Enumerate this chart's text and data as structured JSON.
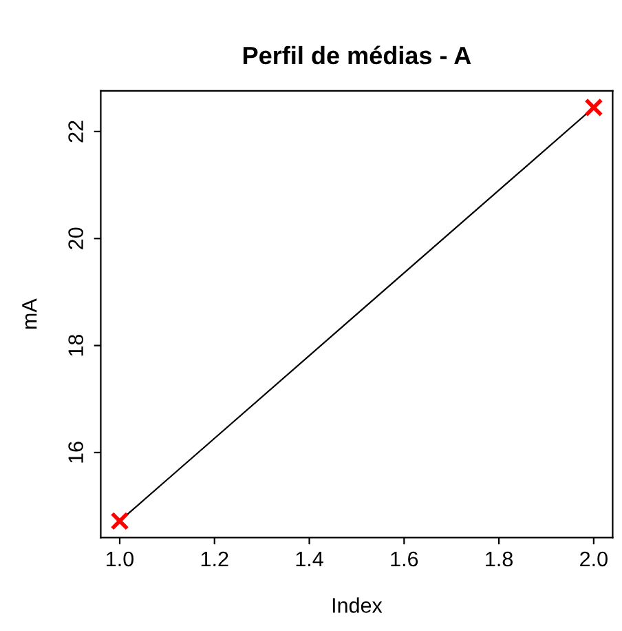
{
  "chart_data": {
    "type": "line",
    "title": "Perfil de médias - A",
    "xlabel": "Index",
    "ylabel": "mA",
    "x": [
      1,
      2
    ],
    "series": [
      {
        "color": "#000000",
        "values": [
          14.72,
          22.45
        ]
      },
      {
        "type": "scatter",
        "color": "#ff0000",
        "values": [
          14.72,
          22.45
        ],
        "marker": "cross"
      }
    ],
    "xlim": [
      0.96,
      2.04
    ],
    "ylim": [
      14.41,
      22.76
    ],
    "xticks": [
      {
        "value": 1,
        "label": "1.0"
      },
      1.2,
      1.4,
      1.6,
      1.8,
      {
        "value": 2,
        "label": "2.0"
      }
    ],
    "yticks": [
      16,
      18,
      20,
      22
    ],
    "grid": false,
    "legend": false
  }
}
